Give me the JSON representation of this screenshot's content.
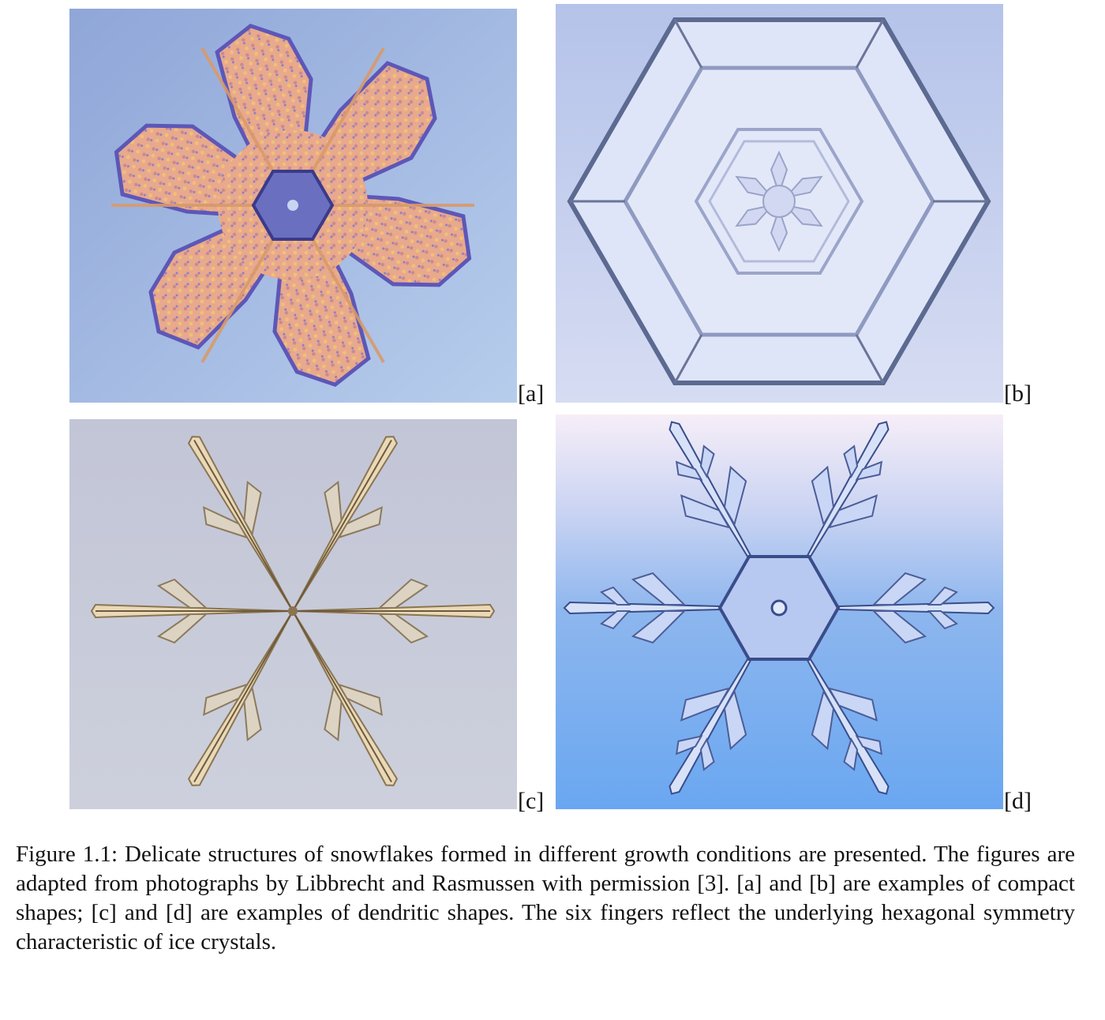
{
  "figure": {
    "panels": [
      {
        "label": "[a]",
        "icon": "compact-snowflake-photo"
      },
      {
        "label": "[b]",
        "icon": "hexagonal-plate-snowflake-photo"
      },
      {
        "label": "[c]",
        "icon": "dendritic-snowflake-photo"
      },
      {
        "label": "[d]",
        "icon": "stellar-dendrite-snowflake-photo"
      }
    ],
    "caption": "Figure 1.1: Delicate structures of snowflakes formed in different growth conditions are presented. The figures are adapted from photographs by Libbrecht and Rasmussen with permission [3]. [a] and [b] are examples of compact shapes; [c] and [d] are examples of dendritic shapes. The six fingers reflect the underlying hexagonal symmetry characteristic of ice crystals."
  },
  "colors": {
    "panel_a_bg": "#9db4df",
    "panel_b_bg": "#c8d2ee",
    "panel_c_bg": "#c6c9d8",
    "panel_d_bg": "#7fb0ee"
  }
}
